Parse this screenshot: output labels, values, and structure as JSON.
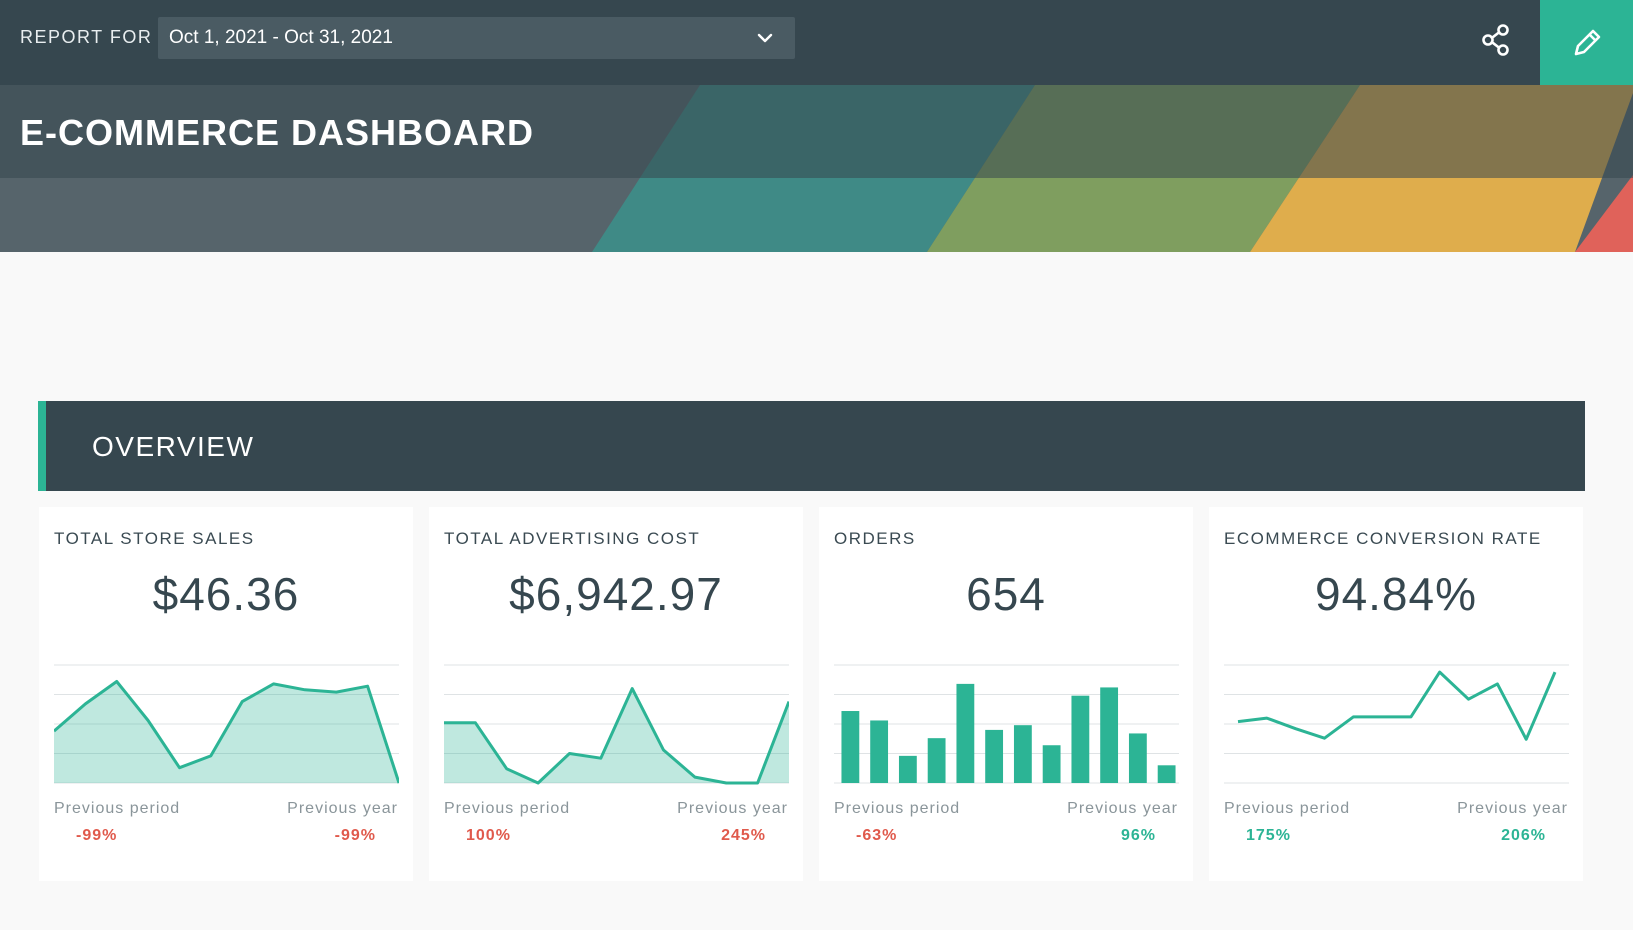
{
  "header": {
    "report_for_label": "REPORT FOR",
    "date_range": "Oct 1, 2021 - Oct 31, 2021",
    "share_icon": "share-icon",
    "edit_icon": "pencil-icon"
  },
  "page": {
    "title": "E-COMMERCE DASHBOARD"
  },
  "section": {
    "title": "OVERVIEW"
  },
  "colors": {
    "accent": "#2cb495",
    "negative": "#e05a4c",
    "header_bg": "#36474f"
  },
  "cards": [
    {
      "title": "TOTAL STORE SALES",
      "value": "$46.36",
      "prev_period_label": "Previous period",
      "prev_year_label": "Previous year",
      "prev_period_value": "-99%",
      "prev_year_value": "-99%"
    },
    {
      "title": "TOTAL ADVERTISING COST",
      "value": "$6,942.97",
      "prev_period_label": "Previous period",
      "prev_year_label": "Previous year",
      "prev_period_value": "100%",
      "prev_year_value": "245%"
    },
    {
      "title": "ORDERS",
      "value": "654",
      "prev_period_label": "Previous period",
      "prev_year_label": "Previous year",
      "prev_period_value": "-63%",
      "prev_year_value": "96%"
    },
    {
      "title": "ECOMMERCE CONVERSION RATE",
      "value": "94.84%",
      "prev_period_label": "Previous period",
      "prev_year_label": "Previous year",
      "prev_period_value": "175%",
      "prev_year_value": "206%"
    }
  ],
  "chart_data": [
    {
      "type": "area",
      "values": [
        0.44,
        0.67,
        0.86,
        0.53,
        0.13,
        0.23,
        0.69,
        0.84,
        0.79,
        0.77,
        0.82,
        0.0
      ],
      "ylim": [
        0,
        1
      ]
    },
    {
      "type": "area",
      "values": [
        0.51,
        0.51,
        0.12,
        0.0,
        0.25,
        0.21,
        0.8,
        0.28,
        0.05,
        0.0,
        0.0,
        0.69
      ],
      "ylim": [
        0,
        1
      ]
    },
    {
      "type": "bar",
      "values": [
        0.61,
        0.53,
        0.23,
        0.38,
        0.84,
        0.45,
        0.49,
        0.32,
        0.74,
        0.81,
        0.42,
        0.15
      ],
      "ylim": [
        0,
        1
      ]
    },
    {
      "type": "line",
      "values": [
        0.52,
        0.55,
        0.46,
        0.38,
        0.56,
        0.56,
        0.56,
        0.94,
        0.71,
        0.84,
        0.37,
        0.94
      ],
      "ylim": [
        0,
        1
      ]
    }
  ]
}
